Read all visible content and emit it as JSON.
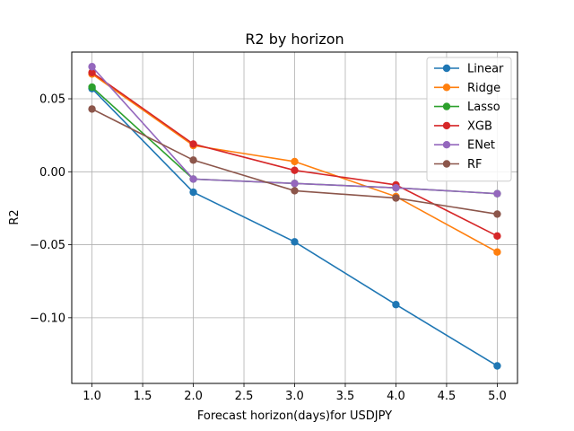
{
  "chart_data": {
    "type": "line",
    "title": "R2 by horizon",
    "xlabel": "Forecast horizon(days)for USDJPY",
    "ylabel": "R2",
    "xlim": [
      0.8,
      5.2
    ],
    "ylim": [
      -0.145,
      0.082
    ],
    "xticks": [
      1.0,
      1.5,
      2.0,
      2.5,
      3.0,
      3.5,
      4.0,
      4.5,
      5.0
    ],
    "xtick_labels": [
      "1.0",
      "1.5",
      "2.0",
      "2.5",
      "3.0",
      "3.5",
      "4.0",
      "4.5",
      "5.0"
    ],
    "yticks": [
      -0.1,
      -0.05,
      0.0,
      0.05
    ],
    "ytick_labels": [
      "−0.10",
      "−0.05",
      "0.00",
      "0.05"
    ],
    "grid": true,
    "legend_position": "top-right",
    "x": [
      1,
      2,
      3,
      4,
      5
    ],
    "series": [
      {
        "name": "Linear",
        "color": "#1f77b4",
        "values": [
          0.057,
          -0.014,
          -0.048,
          -0.091,
          -0.133
        ]
      },
      {
        "name": "Ridge",
        "color": "#ff7f0e",
        "values": [
          0.067,
          0.018,
          0.007,
          -0.017,
          -0.055
        ]
      },
      {
        "name": "Lasso",
        "color": "#2ca02c",
        "values": [
          0.058,
          -0.005,
          -0.008,
          -0.011,
          -0.015
        ]
      },
      {
        "name": "XGB",
        "color": "#d62728",
        "values": [
          0.068,
          0.019,
          0.001,
          -0.009,
          -0.044
        ]
      },
      {
        "name": "ENet",
        "color": "#9467bd",
        "values": [
          0.072,
          -0.005,
          -0.008,
          -0.011,
          -0.015
        ]
      },
      {
        "name": "RF",
        "color": "#8c564b",
        "values": [
          0.043,
          0.008,
          -0.013,
          -0.018,
          -0.029
        ]
      }
    ]
  }
}
